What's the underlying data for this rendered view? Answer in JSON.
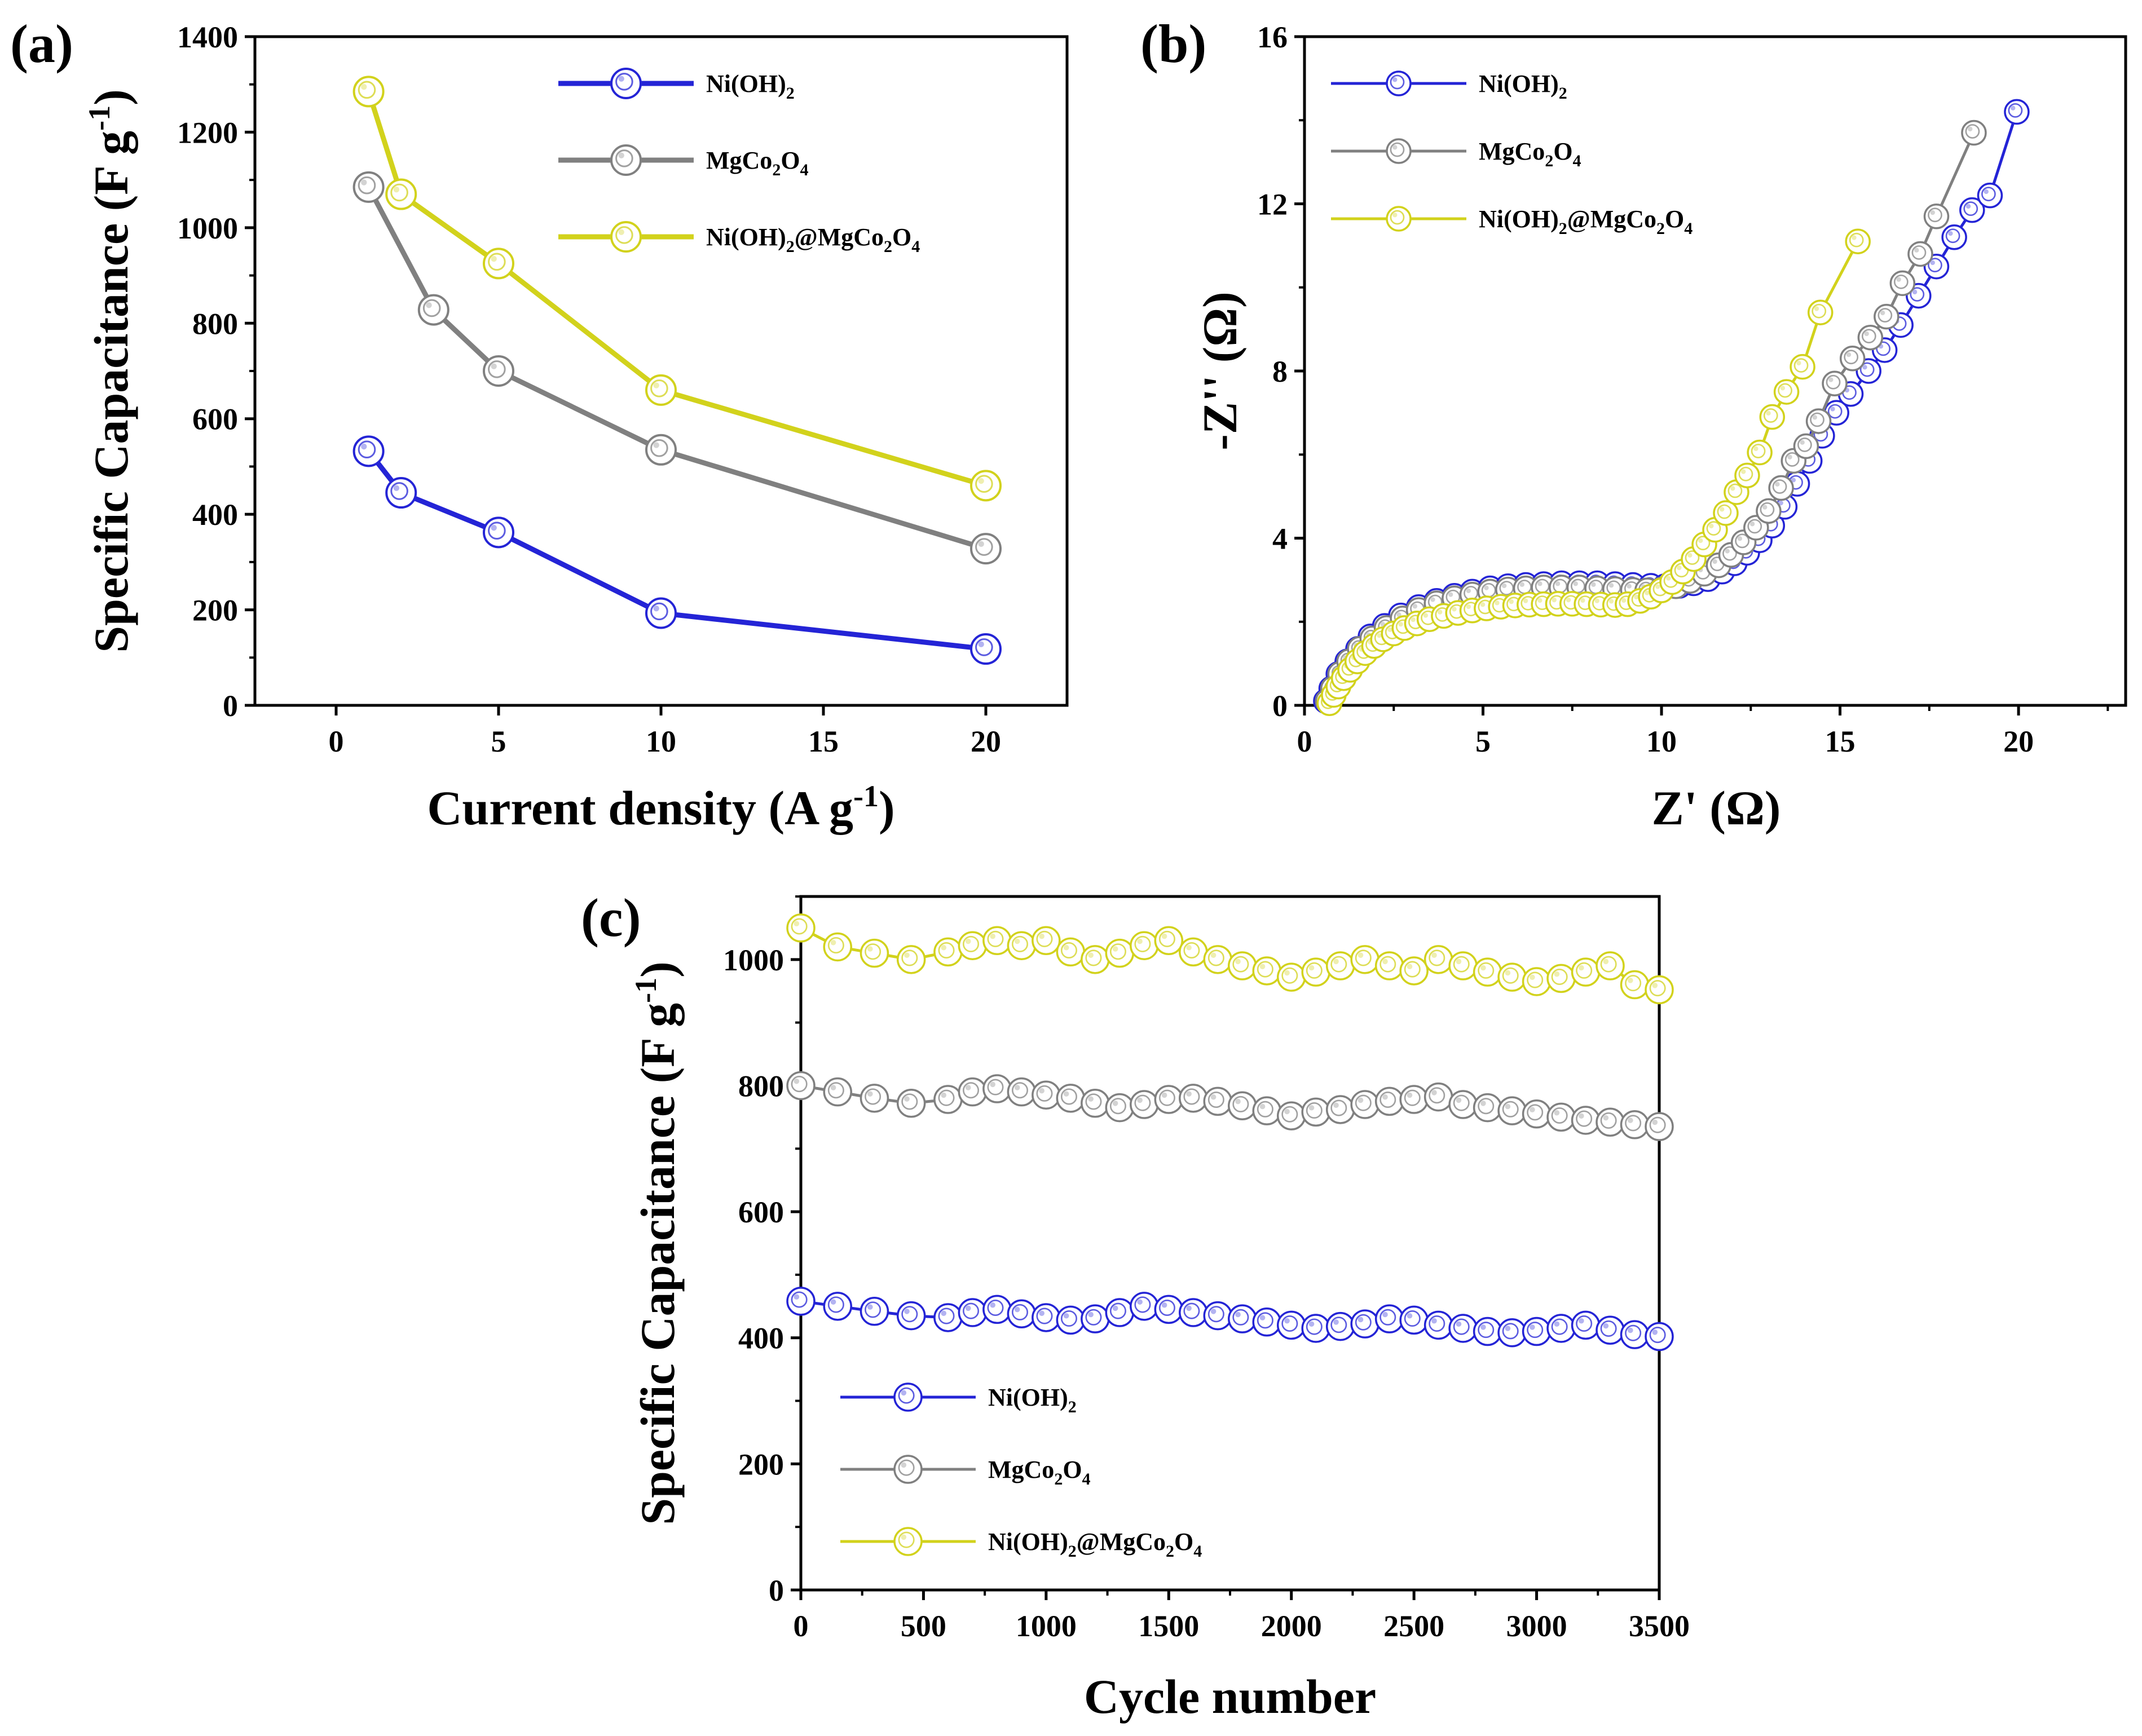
{
  "colors": {
    "blue": "#2424d6",
    "gray": "#808080",
    "yellow": "#d2d21c",
    "axis": "#000000"
  },
  "chart_data": [
    {
      "panel": "(a)",
      "type": "line",
      "xlabel": "Current density (A g",
      "xlabel_sup": "-1",
      "xlabel_end": ")",
      "ylabel": "Specific Capacitance (F g",
      "ylabel_sup": "-1",
      "ylabel_end": ")",
      "xlim": [
        -2.5,
        22.5
      ],
      "ylim": [
        0,
        1400
      ],
      "xticks": [
        "0",
        "5",
        "10",
        "15",
        "20"
      ],
      "yticks": [
        "0",
        "200",
        "400",
        "600",
        "800",
        "1000",
        "1200",
        "1400"
      ],
      "legend_position": "top-right",
      "series": [
        {
          "name_main": "Ni(OH)",
          "name_sub": "2",
          "color_key": "blue",
          "x": [
            1,
            2,
            5,
            10,
            20
          ],
          "y": [
            532,
            445,
            362,
            193,
            118
          ]
        },
        {
          "name_main": "MgCo",
          "name_sub": "2",
          "name_main2": "O",
          "name_sub2": "4",
          "color_key": "gray",
          "x": [
            1,
            3,
            5,
            10,
            20
          ],
          "y": [
            1085,
            828,
            700,
            535,
            328
          ]
        },
        {
          "name_main": "Ni(OH)",
          "name_sub": "2",
          "name_main2": "@MgCo",
          "name_sub2": "2",
          "name_main3": "O",
          "name_sub3": "4",
          "color_key": "yellow",
          "x": [
            1,
            2,
            5,
            10,
            20
          ],
          "y": [
            1285,
            1070,
            925,
            660,
            460
          ]
        }
      ]
    },
    {
      "panel": "(b)",
      "type": "scatter",
      "xlabel": "Z' (Ω)",
      "ylabel": "-Z'' (Ω)",
      "xlim": [
        0,
        23
      ],
      "ylim": [
        0,
        16
      ],
      "xticks": [
        "0",
        "5",
        "10",
        "15",
        "20"
      ],
      "yticks": [
        "0",
        "4",
        "8",
        "12",
        "16"
      ],
      "legend_position": "top-left",
      "series": [
        {
          "name_main": "Ni(OH)",
          "name_sub": "2",
          "color_key": "blue",
          "x": [
            0.6,
            0.75,
            0.95,
            1.2,
            1.5,
            1.85,
            2.25,
            2.7,
            3.2,
            3.7,
            4.2,
            4.7,
            5.2,
            5.7,
            6.2,
            6.7,
            7.2,
            7.7,
            8.2,
            8.7,
            9.2,
            9.7,
            10.1,
            10.5,
            10.9,
            11.3,
            11.7,
            12.05,
            12.4,
            12.75,
            13.1,
            13.45,
            13.8,
            14.15,
            14.5,
            14.9,
            15.3,
            15.8,
            16.25,
            16.7,
            17.2,
            17.7,
            18.2,
            18.7,
            19.2,
            19.95
          ],
          "y": [
            0.1,
            0.4,
            0.75,
            1.05,
            1.35,
            1.65,
            1.9,
            2.15,
            2.35,
            2.5,
            2.62,
            2.72,
            2.8,
            2.85,
            2.88,
            2.9,
            2.92,
            2.92,
            2.92,
            2.9,
            2.88,
            2.86,
            2.85,
            2.86,
            2.92,
            3.02,
            3.2,
            3.4,
            3.65,
            3.95,
            4.3,
            4.75,
            5.3,
            5.85,
            6.45,
            7.0,
            7.45,
            8.0,
            8.5,
            9.1,
            9.8,
            10.5,
            11.2,
            11.85,
            12.2,
            14.2
          ]
        },
        {
          "name_main": "MgCo",
          "name_sub": "2",
          "name_main2": "O",
          "name_sub2": "4",
          "color_key": "gray",
          "x": [
            0.65,
            0.8,
            1.0,
            1.25,
            1.55,
            1.9,
            2.3,
            2.75,
            3.2,
            3.7,
            4.2,
            4.7,
            5.2,
            5.7,
            6.2,
            6.7,
            7.2,
            7.7,
            8.2,
            8.7,
            9.2,
            9.6,
            10.0,
            10.4,
            10.8,
            11.2,
            11.6,
            11.95,
            12.3,
            12.65,
            13.0,
            13.35,
            13.7,
            14.05,
            14.4,
            14.85,
            15.35,
            15.85,
            16.3,
            16.75,
            17.25,
            17.7,
            18.75
          ],
          "y": [
            0.1,
            0.4,
            0.75,
            1.05,
            1.35,
            1.6,
            1.85,
            2.08,
            2.28,
            2.44,
            2.56,
            2.65,
            2.72,
            2.77,
            2.8,
            2.82,
            2.82,
            2.82,
            2.8,
            2.78,
            2.76,
            2.75,
            2.77,
            2.85,
            2.98,
            3.15,
            3.35,
            3.6,
            3.9,
            4.25,
            4.65,
            5.2,
            5.85,
            6.2,
            6.8,
            7.7,
            8.3,
            8.8,
            9.3,
            10.1,
            10.8,
            11.7,
            13.7
          ]
        },
        {
          "name_main": "Ni(OH)",
          "name_sub": "2",
          "name_main2": "@MgCo",
          "name_sub2": "2",
          "name_main3": "O",
          "name_sub3": "4",
          "color_key": "yellow",
          "x": [
            0.7,
            0.82,
            0.95,
            1.1,
            1.28,
            1.48,
            1.7,
            1.95,
            2.2,
            2.5,
            2.8,
            3.15,
            3.5,
            3.9,
            4.3,
            4.7,
            5.1,
            5.5,
            5.9,
            6.3,
            6.7,
            7.1,
            7.5,
            7.9,
            8.3,
            8.7,
            9.05,
            9.4,
            9.7,
            10.0,
            10.3,
            10.6,
            10.9,
            11.2,
            11.5,
            11.8,
            12.1,
            12.4,
            12.75,
            13.1,
            13.5,
            13.95,
            14.45,
            15.5
          ],
          "y": [
            0.05,
            0.25,
            0.45,
            0.65,
            0.85,
            1.05,
            1.25,
            1.42,
            1.58,
            1.72,
            1.85,
            1.96,
            2.06,
            2.14,
            2.21,
            2.27,
            2.32,
            2.36,
            2.39,
            2.41,
            2.42,
            2.43,
            2.43,
            2.42,
            2.41,
            2.4,
            2.42,
            2.5,
            2.6,
            2.75,
            2.95,
            3.2,
            3.5,
            3.85,
            4.2,
            4.6,
            5.1,
            5.5,
            6.05,
            6.9,
            7.5,
            8.1,
            9.4,
            11.1
          ]
        }
      ]
    },
    {
      "panel": "(c)",
      "type": "line",
      "xlabel": "Cycle number",
      "ylabel": "Specific Capacitance (F g",
      "ylabel_sup": "-1",
      "ylabel_end": ")",
      "xlim": [
        0,
        3500
      ],
      "ylim": [
        0,
        1100
      ],
      "xticks": [
        "0",
        "500",
        "1000",
        "1500",
        "2000",
        "2500",
        "3000",
        "3500"
      ],
      "yticks": [
        "0",
        "200",
        "400",
        "600",
        "800",
        "1000"
      ],
      "legend_position": "bottom-left",
      "x": [
        0,
        150,
        300,
        450,
        600,
        700,
        800,
        900,
        1000,
        1100,
        1200,
        1300,
        1400,
        1500,
        1600,
        1700,
        1800,
        1900,
        2000,
        2100,
        2200,
        2300,
        2400,
        2500,
        2600,
        2700,
        2800,
        2900,
        3000,
        3100,
        3200,
        3300,
        3400,
        3500
      ],
      "series": [
        {
          "name_main": "Ni(OH)",
          "name_sub": "2",
          "color_key": "blue",
          "y": [
            458,
            450,
            442,
            435,
            432,
            440,
            445,
            438,
            432,
            428,
            430,
            440,
            450,
            445,
            440,
            435,
            430,
            425,
            420,
            415,
            418,
            422,
            430,
            428,
            420,
            415,
            410,
            408,
            410,
            415,
            420,
            412,
            405,
            402
          ]
        },
        {
          "name_main": "MgCo",
          "name_sub": "2",
          "name_main2": "O",
          "name_sub2": "4",
          "color_key": "gray",
          "y": [
            800,
            790,
            780,
            772,
            778,
            790,
            795,
            790,
            785,
            780,
            772,
            765,
            770,
            778,
            780,
            775,
            768,
            760,
            752,
            758,
            762,
            770,
            775,
            778,
            782,
            770,
            765,
            760,
            755,
            750,
            745,
            742,
            738,
            735
          ]
        },
        {
          "name_main": "Ni(OH)",
          "name_sub": "2",
          "name_main2": "@MgCo",
          "name_sub2": "2",
          "name_main3": "O",
          "name_sub3": "4",
          "color_key": "yellow",
          "y": [
            1050,
            1020,
            1010,
            1000,
            1012,
            1022,
            1030,
            1022,
            1030,
            1012,
            1000,
            1010,
            1022,
            1030,
            1012,
            1000,
            990,
            982,
            972,
            980,
            990,
            1000,
            990,
            982,
            1000,
            990,
            980,
            972,
            965,
            970,
            980,
            990,
            960,
            952
          ]
        }
      ]
    }
  ]
}
